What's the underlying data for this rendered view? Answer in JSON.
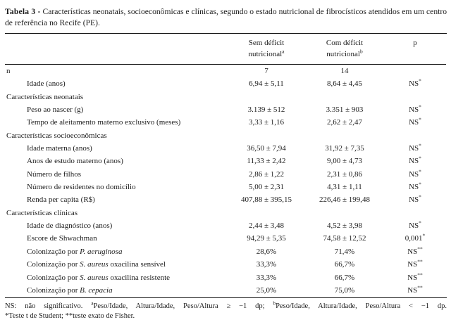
{
  "title": {
    "label": "Tabela 3 -",
    "text": "Características neonatais, socioeconômicas e clínicas, segundo o estado nutricional de fibrocísticos atendidos em um centro de referência no Recife (PE)."
  },
  "table": {
    "columns": [
      {
        "line1": "Sem déficit",
        "line2": "nutricional",
        "sup": "a"
      },
      {
        "line1": "Com déficit",
        "line2": "nutricional",
        "sup": "b"
      },
      {
        "line1": "p",
        "line2": "",
        "sup": ""
      }
    ],
    "rows": [
      {
        "type": "data",
        "indent": 0,
        "label": [
          {
            "t": "n"
          }
        ],
        "c1": "7",
        "c2": "14",
        "p": []
      },
      {
        "type": "data",
        "indent": 1,
        "label": [
          {
            "t": "Idade (anos)"
          }
        ],
        "c1": "6,94 ± 5,11",
        "c2": "8,64 ± 4,45",
        "p": [
          {
            "t": "NS"
          },
          {
            "t": "*",
            "sup": true
          }
        ]
      },
      {
        "type": "section",
        "indent": 0,
        "label": [
          {
            "t": "Características neonatais"
          }
        ],
        "c1": "",
        "c2": "",
        "p": []
      },
      {
        "type": "data",
        "indent": 1,
        "label": [
          {
            "t": "Peso ao nascer (g)"
          }
        ],
        "c1": "3.139 ± 512",
        "c2": "3.351 ± 903",
        "p": [
          {
            "t": "NS"
          },
          {
            "t": "*",
            "sup": true
          }
        ]
      },
      {
        "type": "data",
        "indent": 1,
        "label": [
          {
            "t": "Tempo de aleitamento materno exclusivo (meses)"
          }
        ],
        "c1": "3,33 ± 1,16",
        "c2": "2,62 ± 2,47",
        "p": [
          {
            "t": "NS"
          },
          {
            "t": "*",
            "sup": true
          }
        ]
      },
      {
        "type": "section",
        "indent": 0,
        "label": [
          {
            "t": "Características socioeconômicas"
          }
        ],
        "c1": "",
        "c2": "",
        "p": []
      },
      {
        "type": "data",
        "indent": 1,
        "label": [
          {
            "t": "Idade materna (anos)"
          }
        ],
        "c1": "36,50 ± 7,94",
        "c2": "31,92 ± 7,35",
        "p": [
          {
            "t": "NS"
          },
          {
            "t": "*",
            "sup": true
          }
        ]
      },
      {
        "type": "data",
        "indent": 1,
        "label": [
          {
            "t": "Anos de estudo materno (anos)"
          }
        ],
        "c1": "11,33 ± 2,42",
        "c2": "9,00 ± 4,73",
        "p": [
          {
            "t": "NS"
          },
          {
            "t": "*",
            "sup": true
          }
        ]
      },
      {
        "type": "data",
        "indent": 1,
        "label": [
          {
            "t": "Número de filhos"
          }
        ],
        "c1": "2,86 ± 1,22",
        "c2": "2,31 ± 0,86",
        "p": [
          {
            "t": "NS"
          },
          {
            "t": "*",
            "sup": true
          }
        ]
      },
      {
        "type": "data",
        "indent": 1,
        "label": [
          {
            "t": "Número de residentes no domicílio"
          }
        ],
        "c1": "5,00 ± 2,31",
        "c2": "4,31 ± 1,11",
        "p": [
          {
            "t": "NS"
          },
          {
            "t": "*",
            "sup": true
          }
        ]
      },
      {
        "type": "data",
        "indent": 1,
        "label": [
          {
            "t": "Renda per capita (R$)"
          }
        ],
        "c1": "407,88 ± 395,15",
        "c2": "226,46 ± 199,48",
        "p": [
          {
            "t": "NS"
          },
          {
            "t": "*",
            "sup": true
          }
        ]
      },
      {
        "type": "section",
        "indent": 0,
        "label": [
          {
            "t": "Características clínicas"
          }
        ],
        "c1": "",
        "c2": "",
        "p": []
      },
      {
        "type": "data",
        "indent": 1,
        "label": [
          {
            "t": "Idade de diagnóstico (anos)"
          }
        ],
        "c1": "2,44 ± 3,48",
        "c2": "4,52 ± 3,98",
        "p": [
          {
            "t": "NS"
          },
          {
            "t": "*",
            "sup": true
          }
        ]
      },
      {
        "type": "data",
        "indent": 1,
        "label": [
          {
            "t": "Escore de Shwachman"
          }
        ],
        "c1": "94,29 ± 5,35",
        "c2": "74,58 ± 12,52",
        "p": [
          {
            "t": "0,001"
          },
          {
            "t": "*",
            "sup": true
          }
        ]
      },
      {
        "type": "data",
        "indent": 1,
        "label": [
          {
            "t": "Colonização por "
          },
          {
            "t": "P. aeruginosa",
            "italic": true
          }
        ],
        "c1": "28,6%",
        "c2": "71,4%",
        "p": [
          {
            "t": "NS"
          },
          {
            "t": "**",
            "sup": true
          }
        ]
      },
      {
        "type": "data",
        "indent": 1,
        "label": [
          {
            "t": "Colonização por "
          },
          {
            "t": "S. aureus",
            "italic": true
          },
          {
            "t": " oxacilina sensível"
          }
        ],
        "c1": "33,3%",
        "c2": "66,7%",
        "p": [
          {
            "t": "NS"
          },
          {
            "t": "**",
            "sup": true
          }
        ]
      },
      {
        "type": "data",
        "indent": 1,
        "label": [
          {
            "t": "Colonização por "
          },
          {
            "t": "S. aureus",
            "italic": true
          },
          {
            "t": " oxacilina resistente"
          }
        ],
        "c1": "33,3%",
        "c2": "66,7%",
        "p": [
          {
            "t": "NS"
          },
          {
            "t": "**",
            "sup": true
          }
        ]
      },
      {
        "type": "data",
        "indent": 1,
        "label": [
          {
            "t": "Colonização por "
          },
          {
            "t": "B. cepacia",
            "italic": true
          }
        ],
        "c1": "25,0%",
        "c2": "75,0%",
        "p": [
          {
            "t": "NS"
          },
          {
            "t": "**",
            "sup": true
          }
        ]
      }
    ]
  },
  "footnote": {
    "line1": [
      {
        "t": "NS: não significativo. "
      },
      {
        "t": "a",
        "sup": true
      },
      {
        "t": "Peso/Idade, Altura/Idade, Peso/Altura ≥ −1 dp; "
      },
      {
        "t": "b",
        "sup": true
      },
      {
        "t": "Peso/Idade, Altura/Idade, Peso/Altura < −1 dp."
      }
    ],
    "line2": [
      {
        "t": "*Teste t de Student; **teste exato de Fisher."
      }
    ]
  }
}
